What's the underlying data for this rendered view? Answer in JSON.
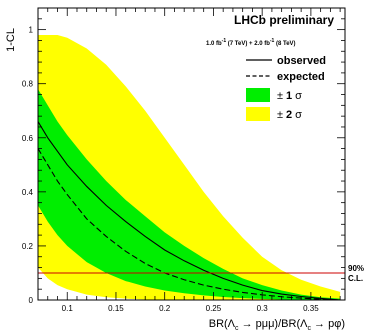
{
  "chart_data": {
    "type": "line",
    "experiment": "LHCb preliminary",
    "luminosity_prefix": "1.0 fb",
    "luminosity_sup1": "-1",
    "luminosity_mid": " (7 TeV) + 2.0 fb",
    "luminosity_sup2": "-1",
    "luminosity_suffix": " (8 TeV)",
    "ylabel": "1-CL",
    "xlabel_parts": {
      "num": "BR(Λ",
      "num_sub": "c",
      "num_tail": " → pμμ)",
      "slash": "/",
      "den": "BR(Λ",
      "den_sub": "c",
      "den_tail": " → pφ)"
    },
    "xlim": [
      0.07,
      0.385
    ],
    "ylim": [
      0.0,
      1.08
    ],
    "x_ticks": [
      0.1,
      0.15,
      0.2,
      0.25,
      0.3,
      0.35
    ],
    "x_tick_labels": [
      "0.1",
      "0.15",
      "0.2",
      "0.25",
      "0.3",
      "0.35"
    ],
    "y_ticks": [
      0,
      0.2,
      0.4,
      0.6,
      0.8,
      1.0
    ],
    "y_tick_labels": [
      "0",
      "0.2",
      "0.4",
      "0.6",
      "0.8",
      "1"
    ],
    "legend": {
      "observed": "observed",
      "expected": "expected",
      "band1_pm": "±",
      "band1_n": "1",
      "band1_sigma": "σ",
      "band2_pm": "±",
      "band2_n": "2",
      "band2_sigma": "σ"
    },
    "cl_line": {
      "y": 0.1,
      "label_line1": "90%",
      "label_line2": "C.L.",
      "color": "#cc0000"
    },
    "colors": {
      "band2": "#ffff00",
      "band1": "#00ee00",
      "observed": "#000000",
      "expected": "#000000"
    },
    "x": [
      0.07,
      0.08,
      0.09,
      0.1,
      0.12,
      0.14,
      0.16,
      0.18,
      0.2,
      0.22,
      0.24,
      0.26,
      0.28,
      0.3,
      0.32,
      0.34,
      0.36,
      0.38
    ],
    "series": [
      {
        "name": "observed",
        "style": "solid",
        "values": [
          0.66,
          0.6,
          0.55,
          0.5,
          0.42,
          0.35,
          0.29,
          0.235,
          0.185,
          0.145,
          0.11,
          0.08,
          0.055,
          0.035,
          0.022,
          0.013,
          0.006,
          0.0
        ]
      },
      {
        "name": "expected",
        "style": "dashed",
        "values": [
          0.56,
          0.5,
          0.44,
          0.39,
          0.3,
          0.235,
          0.18,
          0.135,
          0.1,
          0.075,
          0.055,
          0.04,
          0.028,
          0.019,
          0.012,
          0.007,
          0.003,
          0.0
        ]
      },
      {
        "name": "±1σ upper",
        "values": [
          0.78,
          0.72,
          0.66,
          0.61,
          0.52,
          0.44,
          0.37,
          0.31,
          0.25,
          0.2,
          0.155,
          0.115,
          0.08,
          0.055,
          0.035,
          0.02,
          0.01,
          0.005
        ]
      },
      {
        "name": "±1σ lower",
        "values": [
          0.35,
          0.29,
          0.24,
          0.2,
          0.14,
          0.1,
          0.07,
          0.05,
          0.035,
          0.025,
          0.017,
          0.011,
          0.007,
          0.004,
          0.002,
          0.001,
          0.0,
          0.0
        ]
      },
      {
        "name": "±2σ upper",
        "values": [
          0.98,
          0.98,
          0.98,
          0.97,
          0.93,
          0.87,
          0.79,
          0.7,
          0.6,
          0.5,
          0.4,
          0.31,
          0.23,
          0.16,
          0.11,
          0.075,
          0.05,
          0.03
        ]
      },
      {
        "name": "±2σ lower",
        "values": [
          0.12,
          0.08,
          0.055,
          0.04,
          0.02,
          0.01,
          0.005,
          0.002,
          0.0,
          0.0,
          0.0,
          0.0,
          0.0,
          0.0,
          0.0,
          0.0,
          0.0,
          0.0
        ]
      }
    ]
  }
}
